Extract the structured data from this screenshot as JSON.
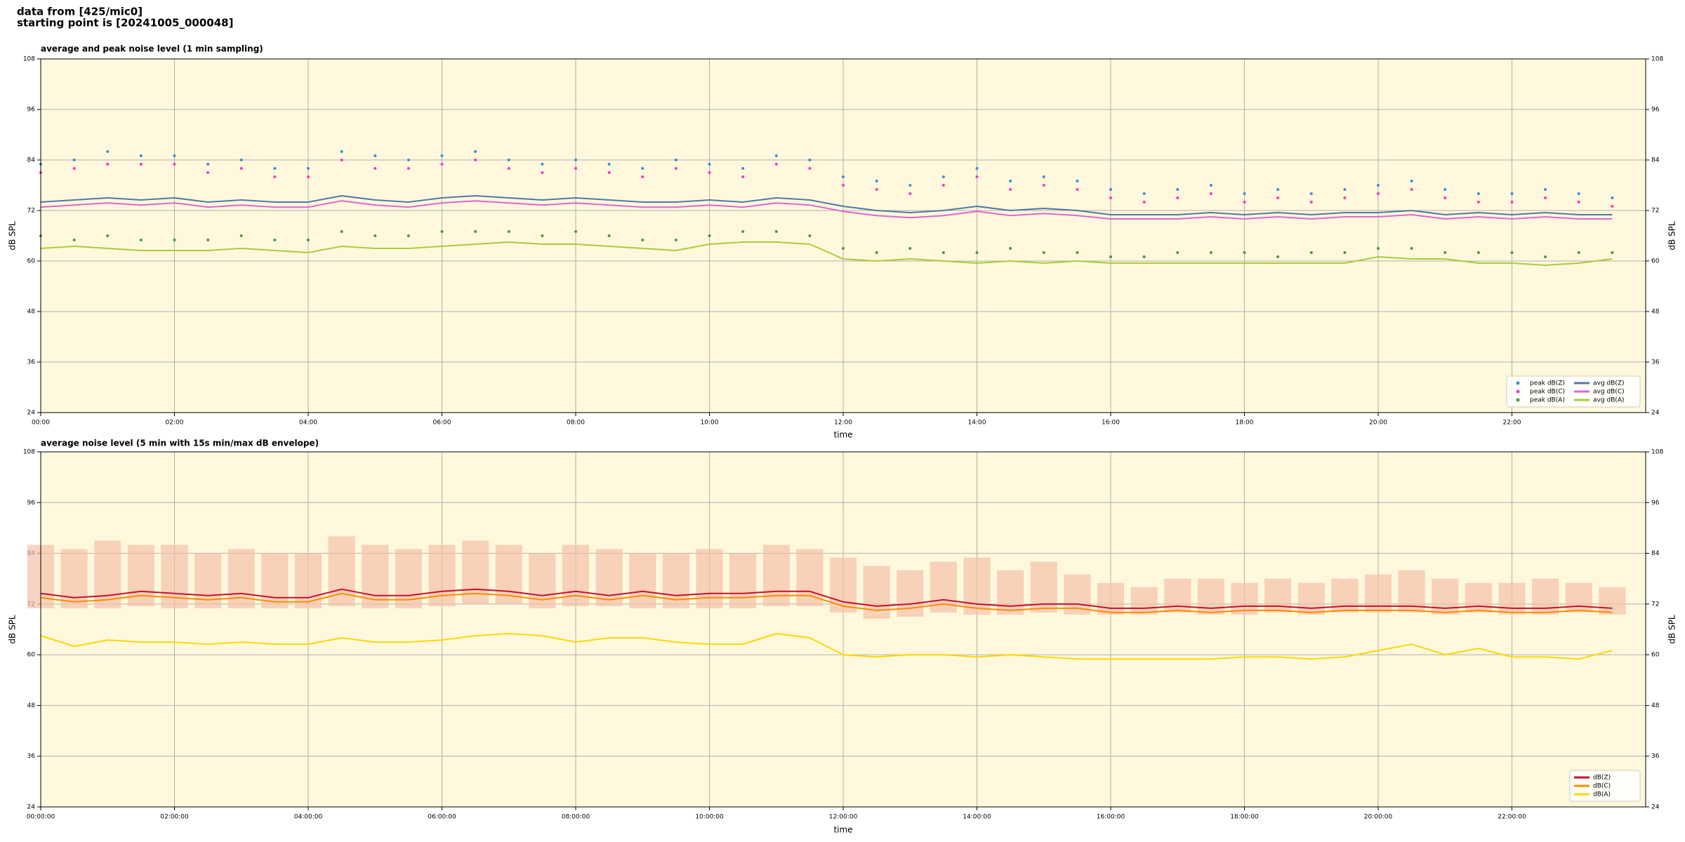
{
  "header": {
    "lines": [
      "data from [425/mic0]",
      "starting point is [20241005_000048]"
    ]
  },
  "chart_data": [
    {
      "type": "line",
      "title": "average and peak noise level (1 min sampling)",
      "xlabel": "time",
      "ylabel": "dB SPL",
      "xlim": [
        0,
        24
      ],
      "ylim": [
        24,
        108
      ],
      "xticks": [
        {
          "value": 0,
          "label": "00:00"
        },
        {
          "value": 2,
          "label": "02:00"
        },
        {
          "value": 4,
          "label": "04:00"
        },
        {
          "value": 6,
          "label": "06:00"
        },
        {
          "value": 8,
          "label": "08:00"
        },
        {
          "value": 10,
          "label": "10:00"
        },
        {
          "value": 12,
          "label": "12:00"
        },
        {
          "value": 14,
          "label": "14:00"
        },
        {
          "value": 16,
          "label": "16:00"
        },
        {
          "value": 18,
          "label": "18:00"
        },
        {
          "value": 20,
          "label": "20:00"
        },
        {
          "value": 22,
          "label": "22:00"
        }
      ],
      "yticks": [
        24,
        36,
        48,
        60,
        72,
        84,
        96,
        108
      ],
      "grid": true,
      "legend": "lower right",
      "legend_columns": 2,
      "x": [
        0,
        0.5,
        1,
        1.5,
        2,
        2.5,
        3,
        3.5,
        4,
        4.5,
        5,
        5.5,
        6,
        6.5,
        7,
        7.5,
        8,
        8.5,
        9,
        9.5,
        10,
        10.5,
        11,
        11.5,
        12,
        12.5,
        13,
        13.5,
        14,
        14.5,
        15,
        15.5,
        16,
        16.5,
        17,
        17.5,
        18,
        18.5,
        19,
        19.5,
        20,
        20.5,
        21,
        21.5,
        22,
        22.5,
        23,
        23.5
      ],
      "series": [
        {
          "name": "peak dB(Z)",
          "style": "dots",
          "color": "#3a8fd9",
          "values": [
            83,
            84,
            86,
            85,
            85,
            83,
            84,
            82,
            82,
            86,
            85,
            84,
            85,
            86,
            84,
            83,
            84,
            83,
            82,
            84,
            83,
            82,
            85,
            84,
            80,
            79,
            78,
            80,
            82,
            79,
            80,
            79,
            77,
            76,
            77,
            78,
            76,
            77,
            76,
            77,
            78,
            79,
            77,
            76,
            76,
            77,
            76,
            75
          ]
        },
        {
          "name": "peak dB(C)",
          "style": "dots",
          "color": "#ff33cc",
          "values": [
            81,
            82,
            83,
            83,
            83,
            81,
            82,
            80,
            80,
            84,
            82,
            82,
            83,
            84,
            82,
            81,
            82,
            81,
            80,
            82,
            81,
            80,
            83,
            82,
            78,
            77,
            76,
            78,
            80,
            77,
            78,
            77,
            75,
            74,
            75,
            76,
            74,
            75,
            74,
            75,
            76,
            77,
            75,
            74,
            74,
            75,
            74,
            73
          ]
        },
        {
          "name": "peak dB(A)",
          "style": "dots",
          "color": "#4a9a3a",
          "values": [
            66,
            65,
            66,
            65,
            65,
            65,
            66,
            65,
            65,
            67,
            66,
            66,
            67,
            67,
            67,
            66,
            67,
            66,
            65,
            65,
            66,
            67,
            67,
            66,
            63,
            62,
            63,
            62,
            62,
            63,
            62,
            62,
            61,
            61,
            62,
            62,
            62,
            61,
            62,
            62,
            63,
            63,
            62,
            62,
            62,
            61,
            62,
            62
          ]
        },
        {
          "name": "avg dB(Z)",
          "style": "line",
          "color": "#4e79a7",
          "values": [
            74,
            74.5,
            75,
            74.5,
            75,
            74,
            74.5,
            74,
            74,
            75.5,
            74.5,
            74,
            75,
            75.5,
            75,
            74.5,
            75,
            74.5,
            74,
            74,
            74.5,
            74,
            75,
            74.5,
            73,
            72,
            71.5,
            72,
            73,
            72,
            72.5,
            72,
            71,
            71,
            71,
            71.5,
            71,
            71.5,
            71,
            71.5,
            71.5,
            72,
            71,
            71.5,
            71,
            71.5,
            71,
            71
          ]
        },
        {
          "name": "avg dB(C)",
          "style": "line",
          "color": "#e066d0",
          "values": [
            72.8,
            73.3,
            73.8,
            73.3,
            73.8,
            72.8,
            73.3,
            72.8,
            72.8,
            74.3,
            73.3,
            72.8,
            73.8,
            74.3,
            73.8,
            73.3,
            73.8,
            73.3,
            72.8,
            72.8,
            73.3,
            72.8,
            73.8,
            73.3,
            71.8,
            70.8,
            70.3,
            70.8,
            71.8,
            70.8,
            71.3,
            70.8,
            70,
            70,
            70,
            70.5,
            70,
            70.5,
            70,
            70.5,
            70.5,
            71,
            70,
            70.5,
            70,
            70.5,
            70,
            70
          ]
        },
        {
          "name": "avg dB(A)",
          "style": "line",
          "color": "#a8cc3c",
          "values": [
            63,
            63.5,
            63,
            62.5,
            62.5,
            62.5,
            63,
            62.5,
            62,
            63.5,
            63,
            63,
            63.5,
            64,
            64.5,
            64,
            64,
            63.5,
            63,
            62.5,
            64,
            64.5,
            64.5,
            64,
            60.5,
            60,
            60.5,
            60,
            59.5,
            60,
            59.5,
            60,
            59.5,
            59.5,
            59.5,
            59.5,
            59.5,
            59.5,
            59.5,
            59.5,
            61,
            60.5,
            60.5,
            59.5,
            59.5,
            59,
            59.5,
            60.5
          ]
        }
      ]
    },
    {
      "type": "line",
      "title": "average noise level (5 min with 15s min/max dB envelope)",
      "xlabel": "time",
      "ylabel": "dB SPL",
      "xlim": [
        0,
        24
      ],
      "ylim": [
        24,
        108
      ],
      "xticks": [
        {
          "value": 0,
          "label": "00:00:00"
        },
        {
          "value": 2,
          "label": "02:00:00"
        },
        {
          "value": 4,
          "label": "04:00:00"
        },
        {
          "value": 6,
          "label": "06:00:00"
        },
        {
          "value": 8,
          "label": "08:00:00"
        },
        {
          "value": 10,
          "label": "10:00:00"
        },
        {
          "value": 12,
          "label": "12:00:00"
        },
        {
          "value": 14,
          "label": "14:00:00"
        },
        {
          "value": 16,
          "label": "16:00:00"
        },
        {
          "value": 18,
          "label": "18:00:00"
        },
        {
          "value": 20,
          "label": "20:00:00"
        },
        {
          "value": 22,
          "label": "22:00:00"
        }
      ],
      "yticks": [
        24,
        36,
        48,
        60,
        72,
        84,
        96,
        108
      ],
      "grid": true,
      "legend": "lower right",
      "legend_columns": 1,
      "x": [
        0,
        0.5,
        1,
        1.5,
        2,
        2.5,
        3,
        3.5,
        4,
        4.5,
        5,
        5.5,
        6,
        6.5,
        7,
        7.5,
        8,
        8.5,
        9,
        9.5,
        10,
        10.5,
        11,
        11.5,
        12,
        12.5,
        13,
        13.5,
        14,
        14.5,
        15,
        15.5,
        16,
        16.5,
        17,
        17.5,
        18,
        18.5,
        19,
        19.5,
        20,
        20.5,
        21,
        21.5,
        22,
        22.5,
        23,
        23.5
      ],
      "band": {
        "color": "#f4c0a8",
        "low": [
          71,
          71,
          71,
          71.5,
          71,
          71,
          71,
          71,
          71,
          71.5,
          71,
          71,
          71.5,
          72,
          72,
          71,
          71.5,
          71.5,
          71,
          71,
          71,
          71,
          71.5,
          71.5,
          70,
          68.5,
          69,
          70,
          69.5,
          69.5,
          70,
          69.5,
          69.5,
          69.5,
          70,
          69.5,
          69.5,
          70,
          69.5,
          70,
          70,
          70,
          69.5,
          70,
          69.5,
          69.5,
          70,
          69.5
        ],
        "high": [
          86,
          85,
          87,
          86,
          86,
          84,
          85,
          84,
          84,
          88,
          86,
          85,
          86,
          87,
          86,
          84,
          86,
          85,
          84,
          84,
          85,
          84,
          86,
          85,
          83,
          81,
          80,
          82,
          83,
          80,
          82,
          79,
          77,
          76,
          78,
          78,
          77,
          78,
          77,
          78,
          79,
          80,
          78,
          77,
          77,
          78,
          77,
          76
        ]
      },
      "series": [
        {
          "name": "dB(Z)",
          "style": "line",
          "color": "#c8102e",
          "values": [
            74.5,
            73.5,
            74,
            75,
            74.5,
            74,
            74.5,
            73.5,
            73.5,
            75.5,
            74,
            74,
            75,
            75.5,
            75,
            74,
            75,
            74,
            75,
            74,
            74.5,
            74.5,
            75,
            75,
            72.5,
            71.5,
            72,
            73,
            72,
            71.5,
            72,
            72,
            71,
            71,
            71.5,
            71,
            71.5,
            71.5,
            71,
            71.5,
            71.5,
            71.5,
            71,
            71.5,
            71,
            71,
            71.5,
            71
          ]
        },
        {
          "name": "dB(C)",
          "style": "line",
          "color": "#ff8c00",
          "values": [
            73.5,
            72.5,
            73,
            74,
            73.5,
            73,
            73.5,
            72.5,
            72.5,
            74.5,
            73,
            73,
            74,
            74.5,
            74,
            73,
            74,
            73,
            74,
            73,
            73.5,
            73.5,
            74,
            74,
            71.5,
            70.5,
            71,
            72,
            71,
            70.5,
            71,
            71,
            70,
            70,
            70.5,
            70,
            70.5,
            70.5,
            70,
            70.5,
            70.5,
            70.5,
            70,
            70.5,
            70,
            70,
            70.5,
            70
          ]
        },
        {
          "name": "dB(A)",
          "style": "line",
          "color": "#ffd700",
          "values": [
            64.5,
            62,
            63.5,
            63,
            63,
            62.5,
            63,
            62.5,
            62.5,
            64,
            63,
            63,
            63.5,
            64.5,
            65,
            64.5,
            63,
            64,
            64,
            63,
            62.5,
            62.5,
            65,
            64,
            60,
            59.5,
            60,
            60,
            59.5,
            60,
            59.5,
            59,
            59,
            59,
            59,
            59,
            59.5,
            59.5,
            59,
            59.5,
            61,
            62.5,
            60,
            61.5,
            59.5,
            59.5,
            59,
            61
          ]
        }
      ]
    }
  ]
}
